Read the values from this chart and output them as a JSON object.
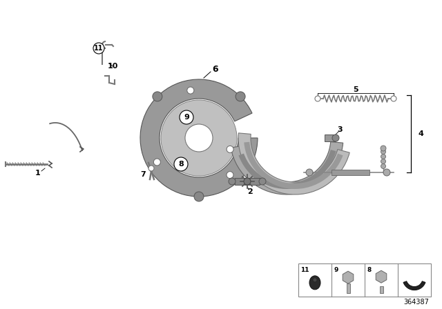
{
  "background_color": "#ffffff",
  "part_number": "364387",
  "line_color": "#888888",
  "dark_line": "#555555",
  "label_color": "#000000",
  "part_gray": "#999999",
  "part_light": "#bbbbbb",
  "part_dark": "#666666"
}
